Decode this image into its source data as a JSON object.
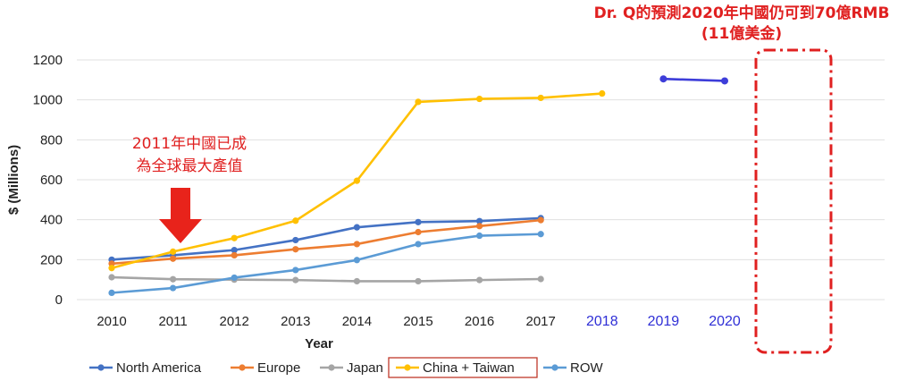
{
  "chart_data": {
    "type": "line",
    "xlabel": "Year",
    "ylabel": "$ (Millions)",
    "ylim": [
      0,
      1200
    ],
    "yticks": [
      "0",
      "200",
      "400",
      "600",
      "800",
      "1000",
      "1200"
    ],
    "categories": [
      "2010",
      "2011",
      "2012",
      "2013",
      "2014",
      "2015",
      "2016",
      "2017",
      "2018",
      "2019",
      "2020"
    ],
    "forecast_categories": [
      "2018",
      "2019",
      "2020"
    ],
    "grid": true,
    "legend_position": "bottom",
    "series": [
      {
        "name": "North America",
        "color": "#4472c4",
        "values": [
          200,
          222,
          248,
          298,
          362,
          388,
          393,
          408,
          null,
          null,
          null
        ]
      },
      {
        "name": "Europe",
        "color": "#ed7d31",
        "values": [
          180,
          205,
          222,
          252,
          278,
          338,
          368,
          398,
          null,
          null,
          null
        ]
      },
      {
        "name": "Japan",
        "color": "#a5a5a5",
        "values": [
          112,
          102,
          100,
          98,
          92,
          92,
          98,
          103,
          null,
          null,
          null
        ]
      },
      {
        "name": "China + Taiwan",
        "color": "#ffc000",
        "values": [
          158,
          240,
          308,
          395,
          595,
          990,
          1005,
          1010,
          1032,
          null,
          null
        ]
      },
      {
        "name": "ROW",
        "color": "#5b9bd5",
        "values": [
          34,
          58,
          110,
          148,
          198,
          278,
          320,
          328,
          null,
          null,
          null
        ]
      }
    ],
    "forecast_segment": {
      "color": "#3d3dd9",
      "x": [
        "2019",
        "2020"
      ],
      "values": [
        1105,
        1095
      ]
    },
    "annotations": {
      "top_line1": "Dr. Q的預測2020年中國仍可到70億RMB",
      "top_line2": "(11億美金)",
      "arrow_line1": "2011年中國已成",
      "arrow_line2": "為全球最大產值"
    },
    "colors": {
      "annotation_red": "#e02020",
      "forecast_tick_blue": "#2f2fd6",
      "grid": "#e0e0e0"
    }
  }
}
